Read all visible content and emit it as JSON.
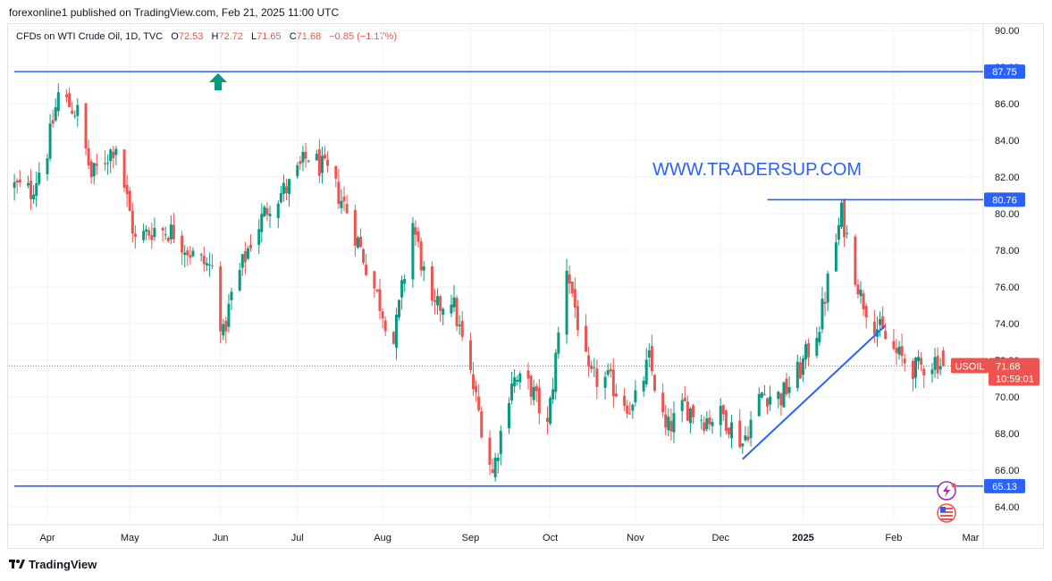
{
  "publisher": "forexonline1 published on TradingView.com, Feb 21, 2025 11:00 UTC",
  "legend": {
    "instrument": "CFDs on WTI Crude Oil, 1D, TVC",
    "open_label": "O",
    "open": "72.53",
    "high_label": "H",
    "high": "72.72",
    "low_label": "L",
    "low": "71.65",
    "close_label": "C",
    "close": "71.68",
    "change": "−0.85 (−1.17%)"
  },
  "watermark": "WWW.TRADERSUP.COM",
  "footer": "TradingView",
  "symbol_badge": {
    "symbol": "USOIL",
    "price": "71.68",
    "countdown": "10:59:01"
  },
  "colors": {
    "up": "#089981",
    "down": "#ef5350",
    "lines": "#2962ff",
    "arrow": "#089981"
  },
  "chart_data": {
    "type": "candlestick",
    "y_axis": {
      "min": 63,
      "max": 90.5,
      "ticks": [
        "90.00",
        "88.00",
        "86.00",
        "84.00",
        "82.00",
        "80.00",
        "78.00",
        "76.00",
        "74.00",
        "72.00",
        "70.00",
        "68.00",
        "66.00",
        "64.00"
      ],
      "side": "right"
    },
    "x_axis": {
      "start": "2024-03-20",
      "end": "2025-03-04",
      "ticks": [
        {
          "label": "Apr",
          "date": "2024-04-01"
        },
        {
          "label": "May",
          "date": "2024-05-01"
        },
        {
          "label": "Jun",
          "date": "2024-06-03"
        },
        {
          "label": "Jul",
          "date": "2024-07-01"
        },
        {
          "label": "Aug",
          "date": "2024-08-01"
        },
        {
          "label": "Sep",
          "date": "2024-09-02"
        },
        {
          "label": "Oct",
          "date": "2024-10-01"
        },
        {
          "label": "Nov",
          "date": "2024-11-01"
        },
        {
          "label": "Dec",
          "date": "2024-12-02"
        },
        {
          "label": "2025",
          "date": "2025-01-01"
        },
        {
          "label": "Feb",
          "date": "2025-02-03"
        },
        {
          "label": "Mar",
          "date": "2025-03-03"
        }
      ]
    },
    "horizontal_levels": [
      {
        "label": "87.75",
        "value": 87.75,
        "from": "2024-03-20"
      },
      {
        "label": "80.76",
        "value": 80.76,
        "from": "2024-12-19"
      },
      {
        "label": "65.13",
        "value": 65.13,
        "from": "2024-03-20"
      }
    ],
    "trendline": {
      "from": {
        "date": "2024-12-10",
        "value": 66.6
      },
      "to": {
        "date": "2025-01-31",
        "value": 73.9
      }
    },
    "current_price": 71.68,
    "price_path": [
      [
        "2024-03-20",
        81.5
      ],
      [
        "2024-03-26",
        81.2
      ],
      [
        "2024-04-01",
        83.5
      ],
      [
        "2024-04-05",
        86.5
      ],
      [
        "2024-04-12",
        85.5
      ],
      [
        "2024-04-17",
        82.0
      ],
      [
        "2024-04-26",
        83.8
      ],
      [
        "2024-05-03",
        78.5
      ],
      [
        "2024-05-10",
        79.2
      ],
      [
        "2024-05-17",
        79.0
      ],
      [
        "2024-05-24",
        77.7
      ],
      [
        "2024-05-31",
        77.0
      ],
      [
        "2024-06-04",
        73.3
      ],
      [
        "2024-06-07",
        75.5
      ],
      [
        "2024-06-14",
        78.5
      ],
      [
        "2024-06-21",
        80.6
      ],
      [
        "2024-06-28",
        81.5
      ],
      [
        "2024-07-05",
        83.2
      ],
      [
        "2024-07-12",
        82.2
      ],
      [
        "2024-07-19",
        80.2
      ],
      [
        "2024-07-26",
        77.2
      ],
      [
        "2024-08-05",
        73.0
      ],
      [
        "2024-08-12",
        79.5
      ],
      [
        "2024-08-19",
        74.6
      ],
      [
        "2024-08-26",
        75.5
      ],
      [
        "2024-09-03",
        70.5
      ],
      [
        "2024-09-10",
        65.8
      ],
      [
        "2024-09-17",
        71.0
      ],
      [
        "2024-09-24",
        70.5
      ],
      [
        "2024-09-30",
        68.3
      ],
      [
        "2024-10-07",
        77.2
      ],
      [
        "2024-10-15",
        71.0
      ],
      [
        "2024-10-22",
        70.9
      ],
      [
        "2024-10-31",
        69.3
      ],
      [
        "2024-11-06",
        72.0
      ],
      [
        "2024-11-12",
        68.1
      ],
      [
        "2024-11-19",
        69.5
      ],
      [
        "2024-11-26",
        68.8
      ],
      [
        "2024-12-03",
        69.0
      ],
      [
        "2024-12-10",
        67.5
      ],
      [
        "2024-12-17",
        70.2
      ],
      [
        "2024-12-24",
        70.0
      ],
      [
        "2024-12-31",
        71.5
      ],
      [
        "2025-01-07",
        74.0
      ],
      [
        "2025-01-15",
        80.0
      ],
      [
        "2025-01-22",
        75.5
      ],
      [
        "2025-01-28",
        73.8
      ],
      [
        "2025-02-04",
        72.3
      ],
      [
        "2025-02-11",
        71.5
      ],
      [
        "2025-02-18",
        72.0
      ],
      [
        "2025-02-21",
        71.7
      ]
    ]
  }
}
